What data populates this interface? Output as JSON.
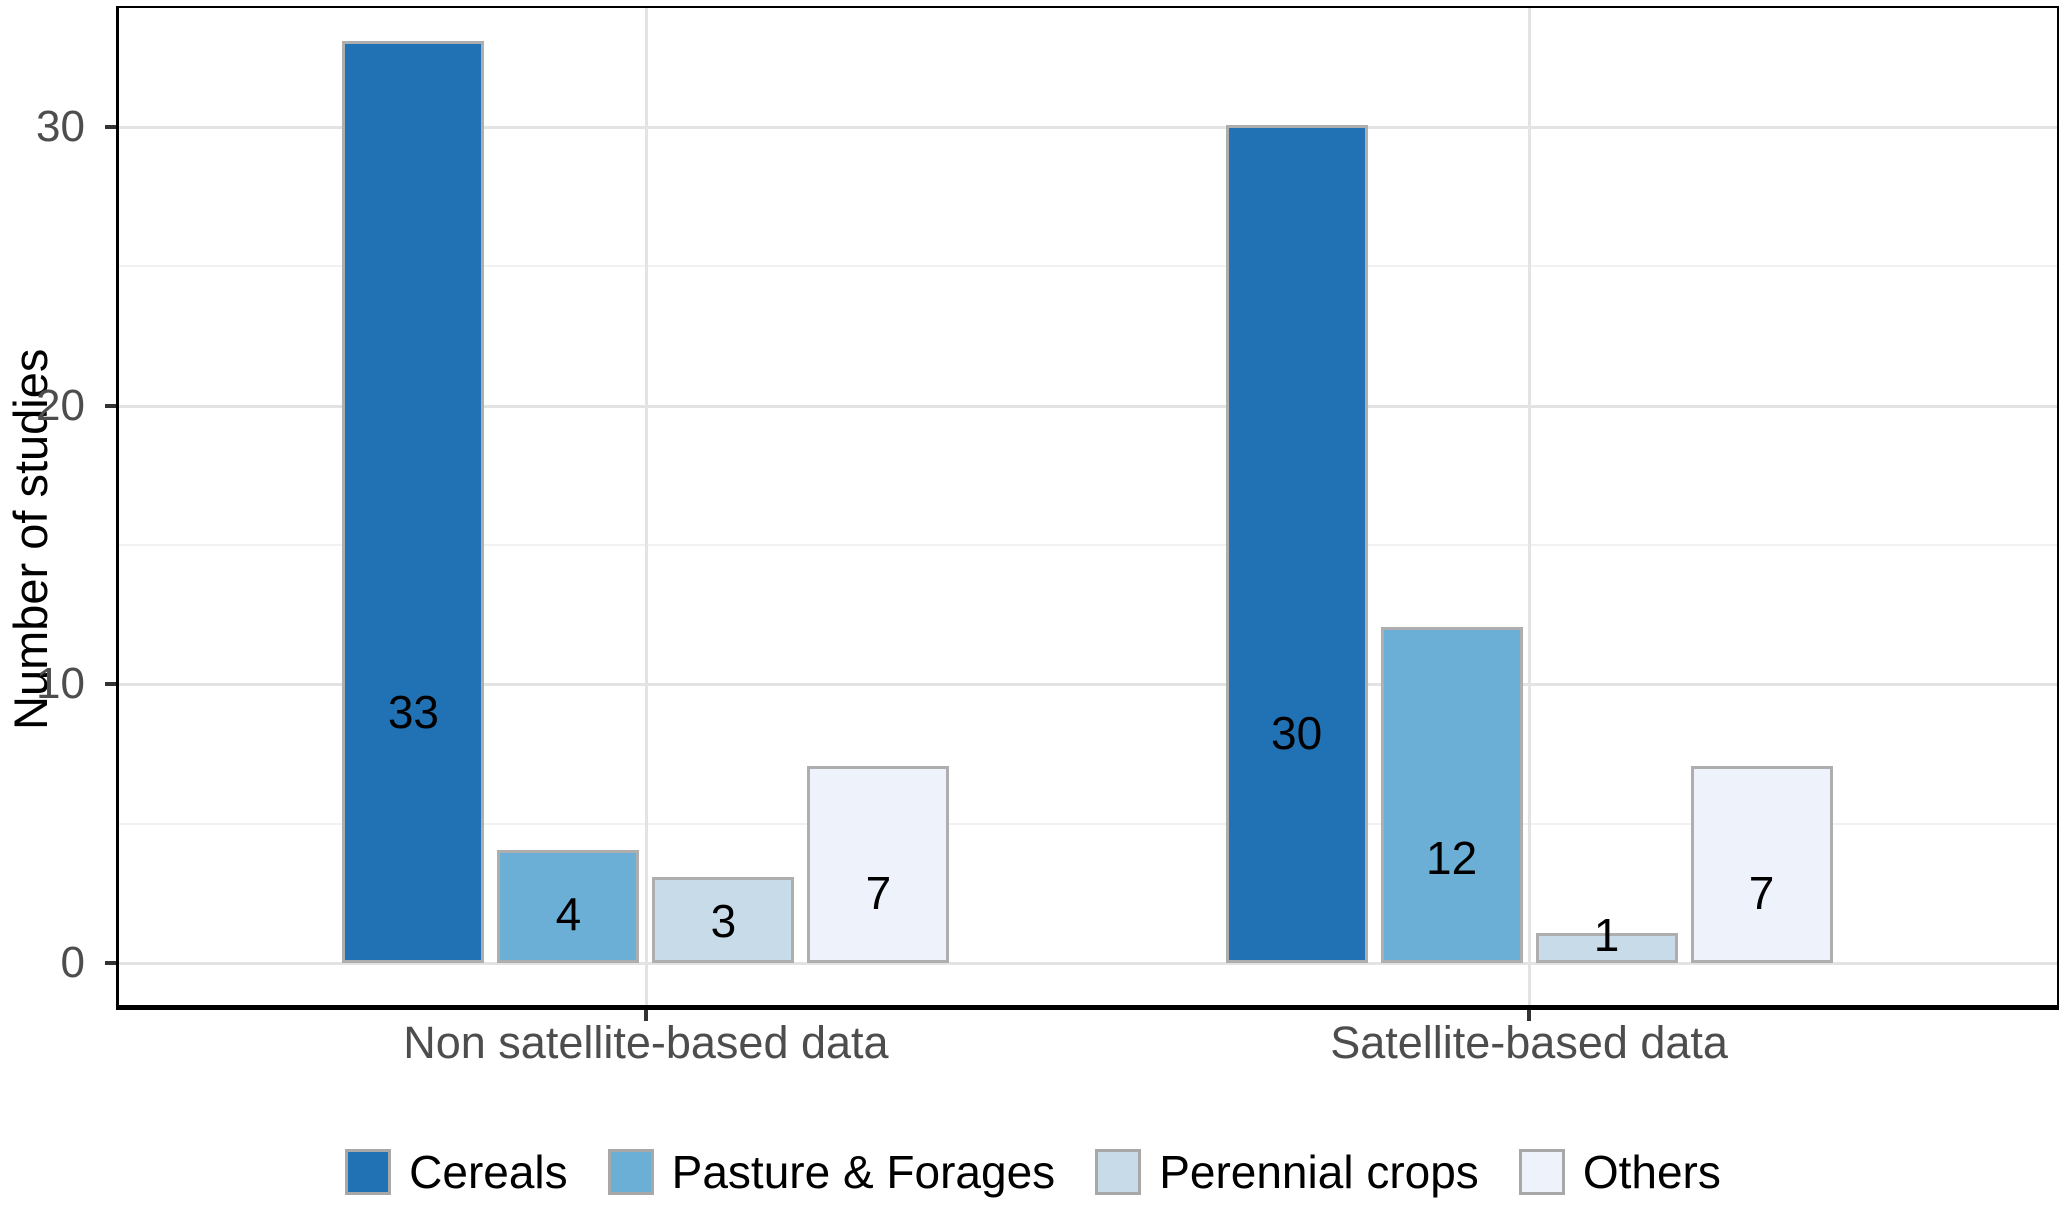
{
  "chart_data": {
    "type": "bar",
    "title": "",
    "xlabel": "",
    "ylabel": "Number of studies",
    "categories": [
      "Non satellite-based data",
      "Satellite-based data"
    ],
    "series": [
      {
        "name": "Cereals",
        "color": "#2171b5",
        "values": [
          33,
          30
        ]
      },
      {
        "name": "Pasture & Forages",
        "color": "#6baed6",
        "values": [
          4,
          12
        ]
      },
      {
        "name": "Perennial crops",
        "color": "#c7dbe9",
        "values": [
          3,
          1
        ]
      },
      {
        "name": "Others",
        "color": "#eef2fb",
        "values": [
          7,
          7
        ]
      }
    ],
    "bar_value_labels": [
      [
        "33",
        "4",
        "3",
        "7"
      ],
      [
        "30",
        "12",
        "1",
        "7"
      ]
    ],
    "ylim": [
      0,
      34.3
    ],
    "yticks": [
      "0",
      "10",
      "20",
      "30"
    ],
    "ytick_values": [
      0,
      10,
      20,
      30
    ],
    "ytick_minor_values": [
      5,
      15,
      25
    ],
    "grid": "on",
    "legend_position": "bottom-center",
    "colors": {
      "bar_border": "#aeaeae",
      "legend_swatch_border": "#a8a8a8",
      "axis_tick_text": "#4d4d4d",
      "axis_line": "#000000",
      "grid_major": "#e3e3e3",
      "grid_minor": "#f1f1f1",
      "value_label_text": "#000000"
    }
  }
}
